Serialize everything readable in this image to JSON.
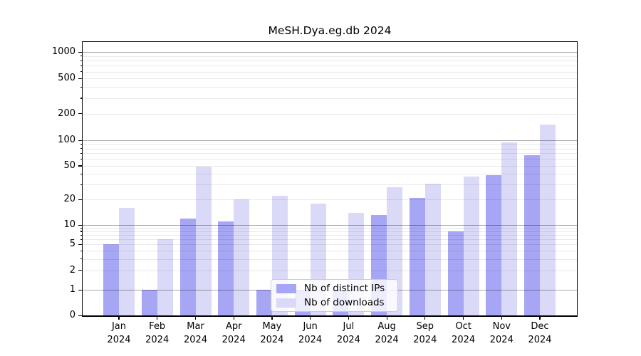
{
  "chart_data": {
    "type": "bar",
    "title": "MeSH.Dya.eg.db 2024",
    "categories": [
      "Jan 2024",
      "Feb 2024",
      "Mar 2024",
      "Apr 2024",
      "May 2024",
      "Jun 2024",
      "Jul 2024",
      "Aug 2024",
      "Sep 2024",
      "Oct 2024",
      "Nov 2024",
      "Dec 2024"
    ],
    "x_tick_months": [
      "Jan",
      "Feb",
      "Mar",
      "Apr",
      "May",
      "Jun",
      "Jul",
      "Aug",
      "Sep",
      "Oct",
      "Nov",
      "Dec"
    ],
    "x_tick_year": "2024",
    "series": [
      {
        "name": "Nb of distinct IPs",
        "color": "#a6a6f5",
        "values": [
          5,
          1,
          12,
          11,
          1,
          1,
          1,
          13,
          21,
          8,
          39,
          67
        ]
      },
      {
        "name": "Nb of downloads",
        "color": "#dadaf8",
        "values": [
          16,
          6,
          49,
          20,
          22,
          18,
          14,
          28,
          31,
          37,
          95,
          150
        ]
      }
    ],
    "ylabel": "",
    "xlabel": "",
    "yscale": "log",
    "yticks": [
      0,
      1,
      2,
      5,
      10,
      20,
      50,
      100,
      200,
      500,
      1000
    ],
    "ylim": [
      0,
      1300
    ],
    "grid": true,
    "gridlines_over_bars": true,
    "legend_position": "lower center-left inside plot"
  },
  "colors": {
    "background": "#ffffff",
    "axis": "#000000",
    "grid_major": "rgba(0,0,0,0.34)",
    "grid_minor": "rgba(0,0,0,0.085)",
    "legend_border": "#cccccc"
  }
}
